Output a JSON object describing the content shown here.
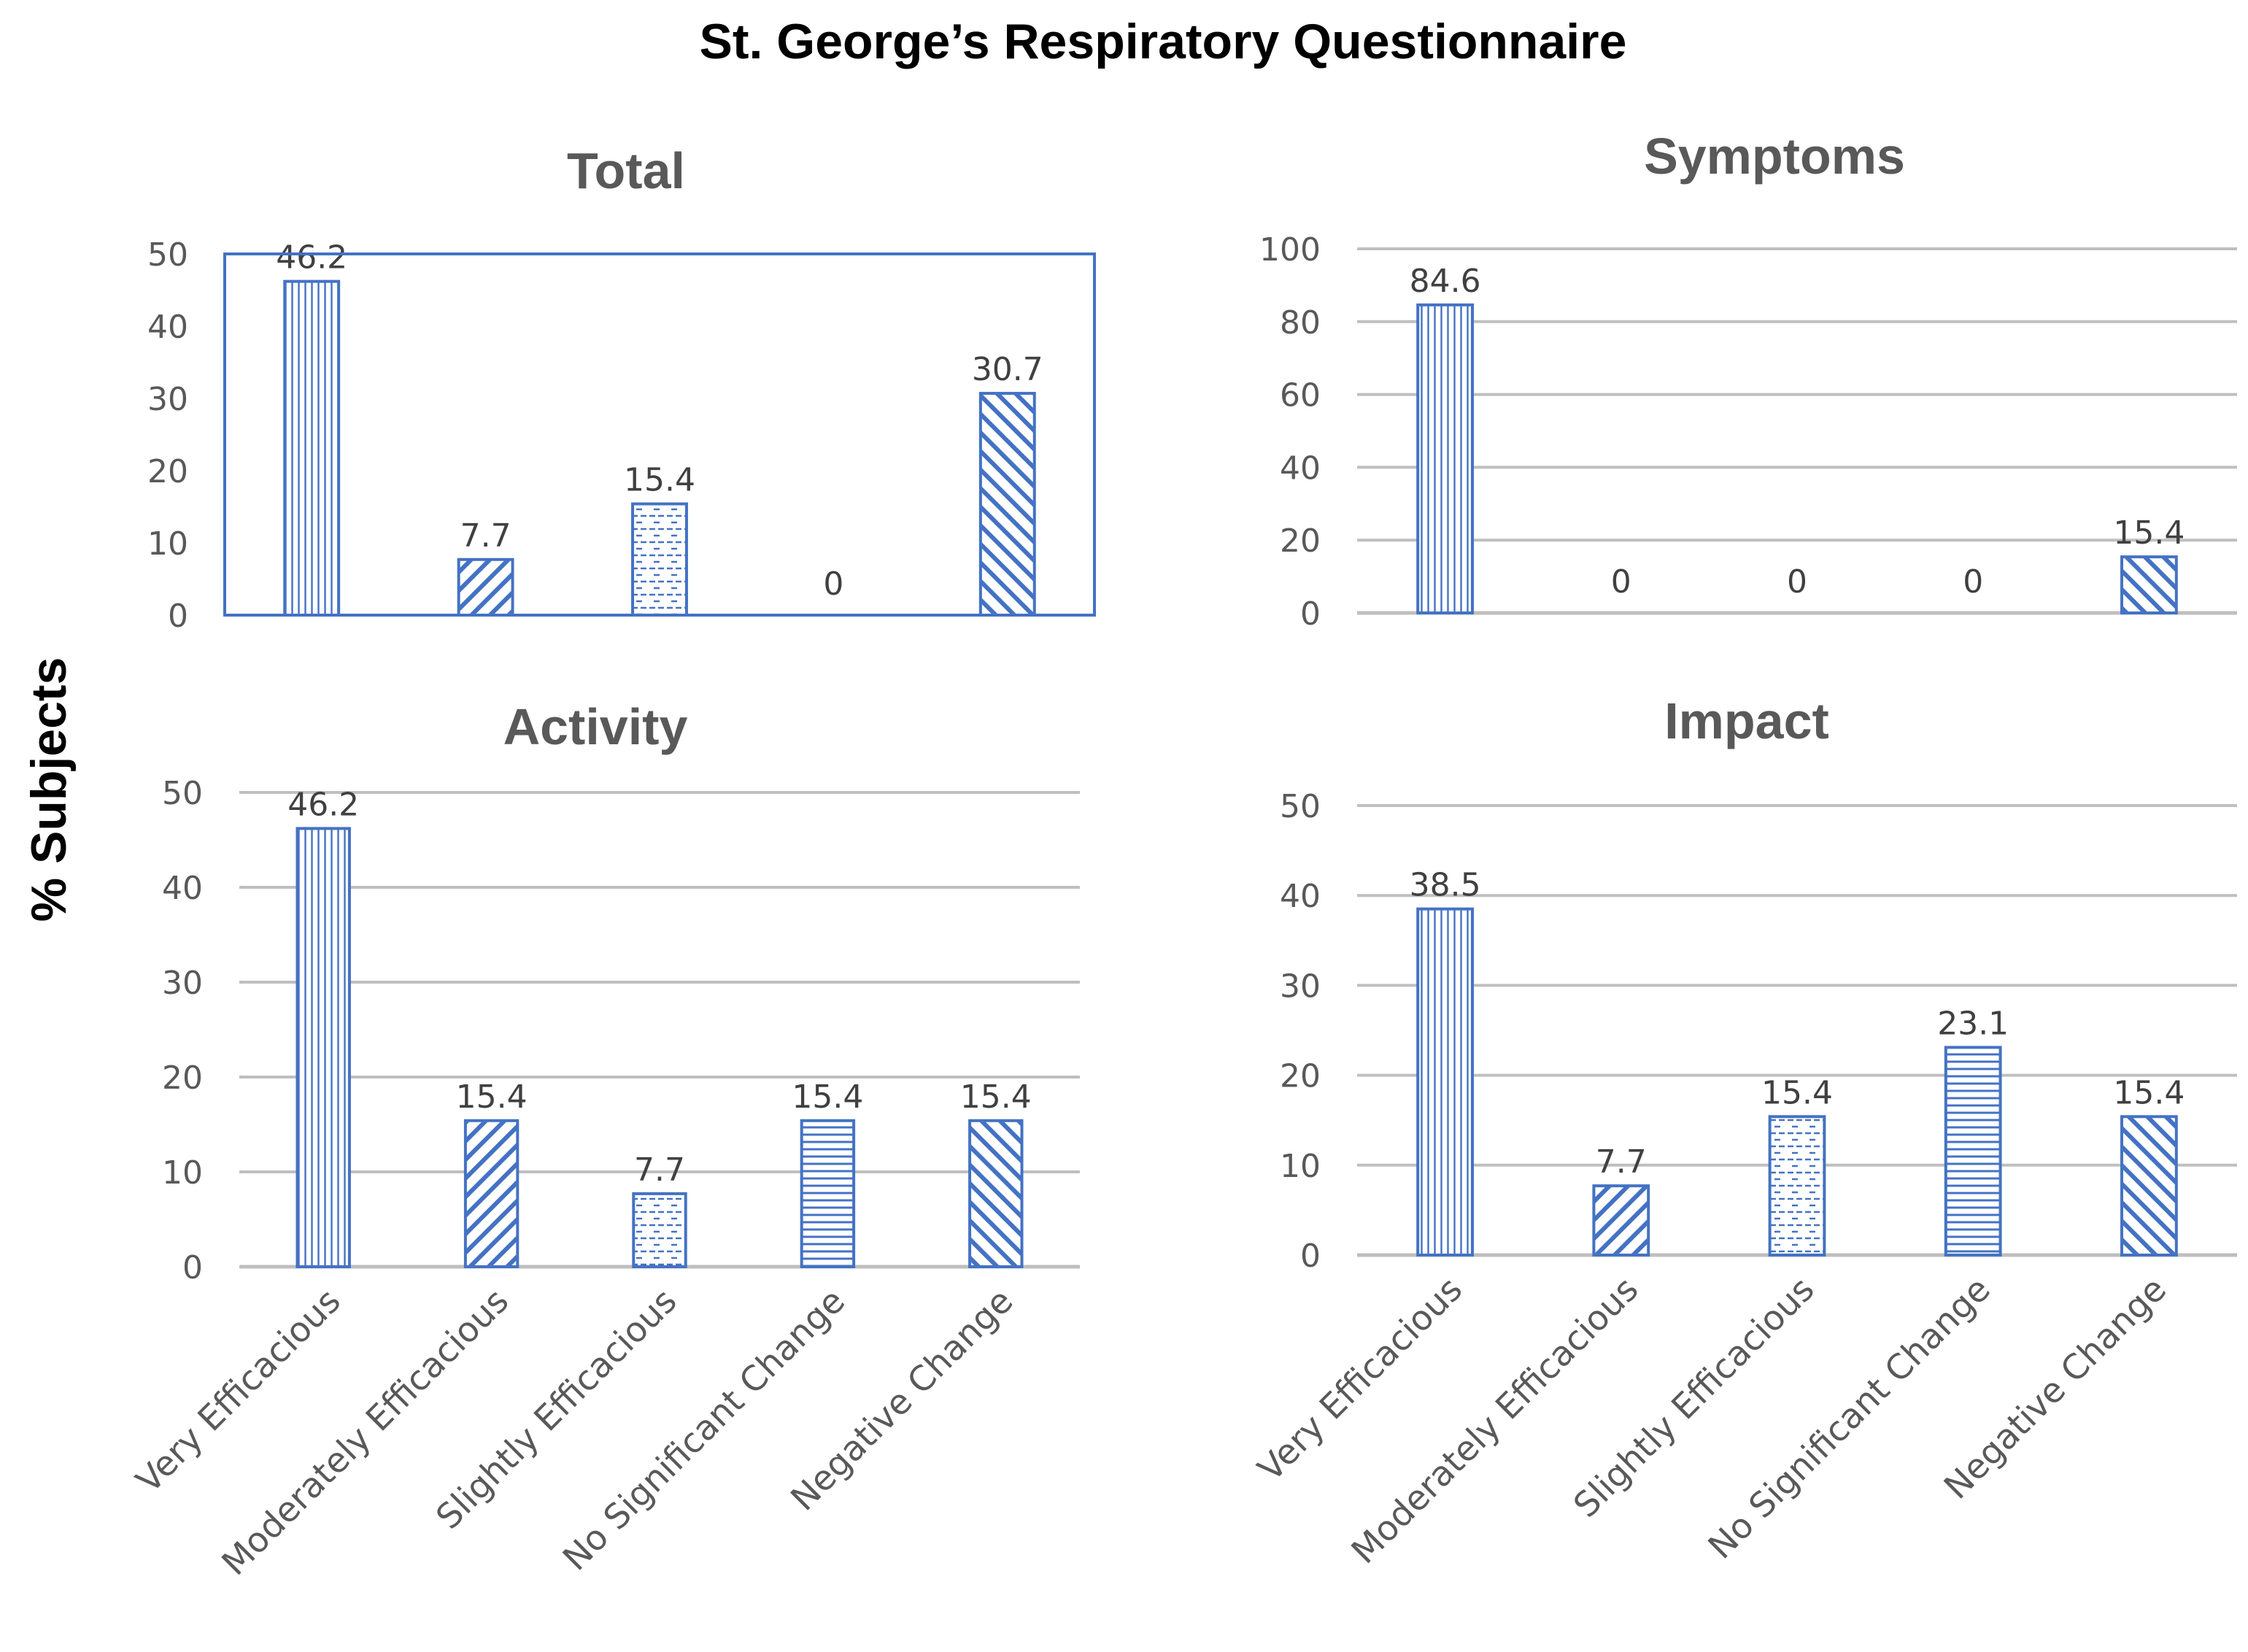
{
  "title": "St. George’s Respiratory Questionnaire",
  "ylabel": "% Subjects",
  "colors": {
    "bar": "#4472C4",
    "grid": "#BFBFBF",
    "text": "#595959",
    "label": "#404040",
    "frame": "#4472C4"
  },
  "chart_data": [
    {
      "type": "bar",
      "title": "Total",
      "categories": [
        "Very Efficacious",
        "Moderately Efficacious",
        "Slightly Efficacious",
        "No Significant Change",
        "Negative Change"
      ],
      "values": [
        46.2,
        7.7,
        15.4,
        0,
        30.7
      ],
      "value_labels": [
        "46.2",
        "7.7",
        "15.4",
        "0",
        "30.7"
      ],
      "ylim": [
        0,
        50
      ],
      "yticks": [
        "0",
        "10",
        "20",
        "30",
        "40",
        "50"
      ],
      "patterns": [
        "vertical",
        "diagonal-up",
        "dashed",
        "horizontal",
        "diagonal-down"
      ],
      "grid": false,
      "show_category_labels": false
    },
    {
      "type": "bar",
      "title": "Symptoms",
      "categories": [
        "Very Efficacious",
        "Moderately Efficacious",
        "Slightly Efficacious",
        "No Significant Change",
        "Negative Change"
      ],
      "values": [
        84.6,
        0,
        0,
        0,
        15.4
      ],
      "value_labels": [
        "84.6",
        "0",
        "0",
        "0",
        "15.4"
      ],
      "ylim": [
        0,
        100
      ],
      "yticks": [
        "0",
        "20",
        "40",
        "60",
        "80",
        "100"
      ],
      "patterns": [
        "vertical",
        "diagonal-up",
        "dashed",
        "horizontal",
        "diagonal-down"
      ],
      "grid": true,
      "show_category_labels": false
    },
    {
      "type": "bar",
      "title": "Activity",
      "categories": [
        "Very Efficacious",
        "Moderately Efficacious",
        "Slightly Efficacious",
        "No Significant Change",
        "Negative Change"
      ],
      "values": [
        46.2,
        15.4,
        7.7,
        15.4,
        15.4
      ],
      "value_labels": [
        "46.2",
        "15.4",
        "7.7",
        "15.4",
        "15.4"
      ],
      "ylim": [
        0,
        50
      ],
      "yticks": [
        "0",
        "10",
        "20",
        "30",
        "40",
        "50"
      ],
      "patterns": [
        "vertical",
        "diagonal-up",
        "dashed",
        "horizontal",
        "diagonal-down"
      ],
      "grid": true,
      "show_category_labels": true
    },
    {
      "type": "bar",
      "title": "Impact",
      "categories": [
        "Very Efficacious",
        "Moderately Efficacious",
        "Slightly Efficacious",
        "No Significant Change",
        "Negative Change"
      ],
      "values": [
        38.5,
        7.7,
        15.4,
        23.1,
        15.4
      ],
      "value_labels": [
        "38.5",
        "7.7",
        "15.4",
        "23.1",
        "15.4"
      ],
      "ylim": [
        0,
        50
      ],
      "yticks": [
        "0",
        "10",
        "20",
        "30",
        "40",
        "50"
      ],
      "patterns": [
        "vertical",
        "diagonal-up",
        "dashed",
        "horizontal",
        "diagonal-down"
      ],
      "grid": true,
      "show_category_labels": true
    }
  ]
}
